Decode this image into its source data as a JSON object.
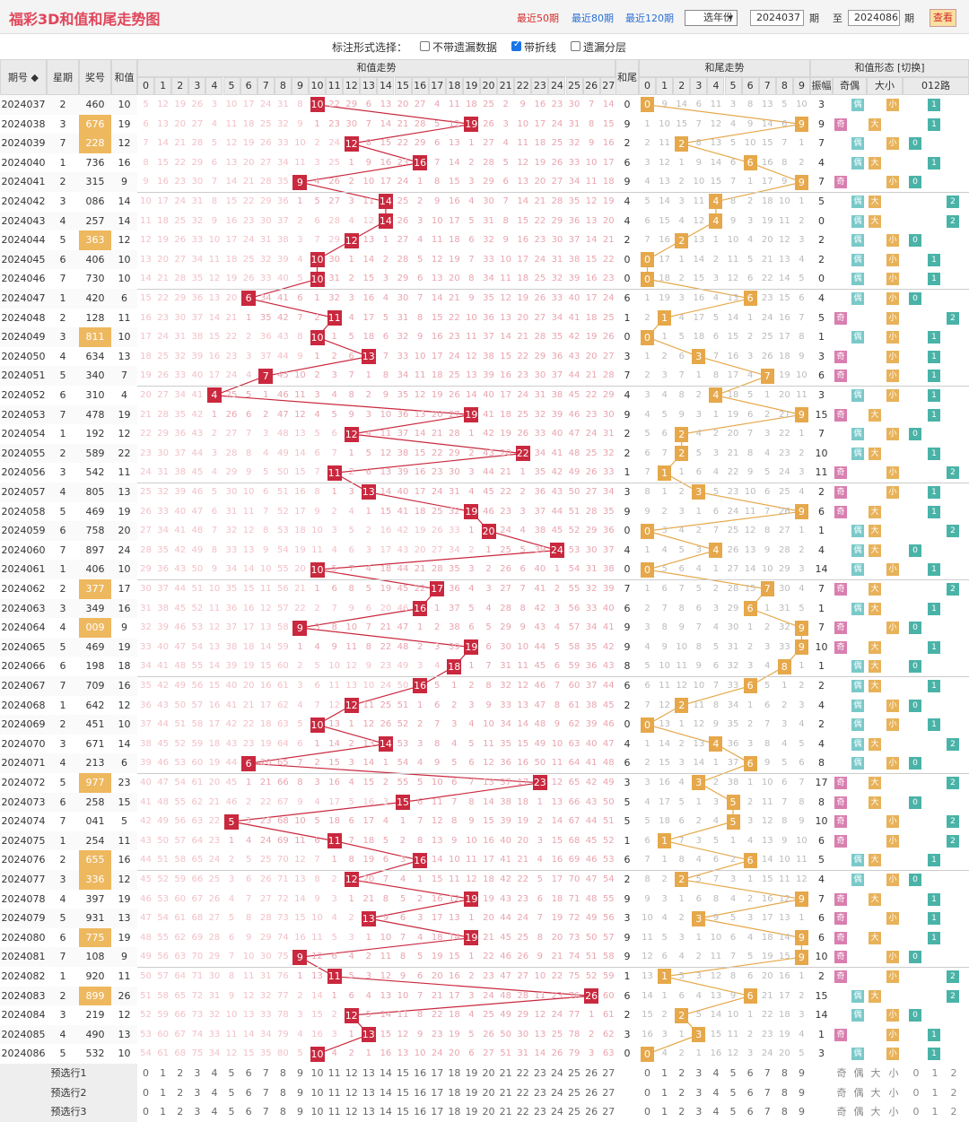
{
  "header": {
    "title": "福彩3D和值和尾走势图",
    "q50": "最近50期",
    "q80": "最近80期",
    "q120": "最近120期",
    "year_select": "选年份",
    "from": "2024037",
    "qi": "期",
    "zhi": "至",
    "to": "2024086",
    "query": "查看"
  },
  "options": {
    "label": "标注形式选择：",
    "opt1": "不带遗漏数据",
    "opt2": "带折线",
    "opt3": "遗漏分层"
  },
  "columns": {
    "issue": "期号",
    "week": "星期",
    "number": "奖号",
    "sum": "和值",
    "sum_trend": "和值走势",
    "tail": "和尾",
    "tail_trend": "和尾走势",
    "shape": "和值形态 [切换]",
    "amp": "振幅",
    "oddeven": "奇偶",
    "bigsmall": "大小",
    "road": "012路",
    "odd": "奇",
    "even": "偶",
    "big": "大",
    "small": "小"
  },
  "rows": [
    [
      "2024037",
      "2",
      "460",
      "10"
    ],
    [
      "2024038",
      "3",
      "676",
      "19"
    ],
    [
      "2024039",
      "7",
      "228",
      "12"
    ],
    [
      "2024040",
      "1",
      "736",
      "16"
    ],
    [
      "2024041",
      "2",
      "315",
      "9"
    ],
    [
      "2024042",
      "3",
      "086",
      "14"
    ],
    [
      "2024043",
      "4",
      "257",
      "14"
    ],
    [
      "2024044",
      "5",
      "363",
      "12"
    ],
    [
      "2024045",
      "6",
      "406",
      "10"
    ],
    [
      "2024046",
      "7",
      "730",
      "10"
    ],
    [
      "2024047",
      "1",
      "420",
      "6"
    ],
    [
      "2024048",
      "2",
      "128",
      "11"
    ],
    [
      "2024049",
      "3",
      "811",
      "10"
    ],
    [
      "2024050",
      "4",
      "634",
      "13"
    ],
    [
      "2024051",
      "5",
      "340",
      "7"
    ],
    [
      "2024052",
      "6",
      "310",
      "4"
    ],
    [
      "2024053",
      "7",
      "478",
      "19"
    ],
    [
      "2024054",
      "1",
      "192",
      "12"
    ],
    [
      "2024055",
      "2",
      "589",
      "22"
    ],
    [
      "2024056",
      "3",
      "542",
      "11"
    ],
    [
      "2024057",
      "4",
      "805",
      "13"
    ],
    [
      "2024058",
      "5",
      "469",
      "19"
    ],
    [
      "2024059",
      "6",
      "758",
      "20"
    ],
    [
      "2024060",
      "7",
      "897",
      "24"
    ],
    [
      "2024061",
      "1",
      "406",
      "10"
    ],
    [
      "2024062",
      "2",
      "377",
      "17"
    ],
    [
      "2024063",
      "3",
      "349",
      "16"
    ],
    [
      "2024064",
      "4",
      "009",
      "9"
    ],
    [
      "2024065",
      "5",
      "469",
      "19"
    ],
    [
      "2024066",
      "6",
      "198",
      "18"
    ],
    [
      "2024067",
      "7",
      "709",
      "16"
    ],
    [
      "2024068",
      "1",
      "642",
      "12"
    ],
    [
      "2024069",
      "2",
      "451",
      "10"
    ],
    [
      "2024070",
      "3",
      "671",
      "14"
    ],
    [
      "2024071",
      "4",
      "213",
      "6"
    ],
    [
      "2024072",
      "5",
      "977",
      "23"
    ],
    [
      "2024073",
      "6",
      "258",
      "15"
    ],
    [
      "2024074",
      "7",
      "041",
      "5"
    ],
    [
      "2024075",
      "1",
      "254",
      "11"
    ],
    [
      "2024076",
      "2",
      "655",
      "16"
    ],
    [
      "2024077",
      "3",
      "336",
      "12"
    ],
    [
      "2024078",
      "4",
      "397",
      "19"
    ],
    [
      "2024079",
      "5",
      "931",
      "13"
    ],
    [
      "2024080",
      "6",
      "775",
      "19"
    ],
    [
      "2024081",
      "7",
      "108",
      "9"
    ],
    [
      "2024082",
      "1",
      "920",
      "11"
    ],
    [
      "2024083",
      "2",
      "899",
      "26"
    ],
    [
      "2024084",
      "3",
      "219",
      "12"
    ],
    [
      "2024085",
      "4",
      "490",
      "13"
    ],
    [
      "2024086",
      "5",
      "532",
      "10"
    ]
  ],
  "highlight_numbers": [
    "676",
    "228",
    "363",
    "811",
    "377",
    "009",
    "977",
    "655",
    "336",
    "775",
    "899"
  ],
  "preselect": [
    "预选行1",
    "预选行2",
    "预选行3"
  ],
  "colors": {
    "ball": "#c9283e",
    "tail_ball": "#e6a84a",
    "line": "#c9283e",
    "tail_line": "#e6a84a"
  }
}
